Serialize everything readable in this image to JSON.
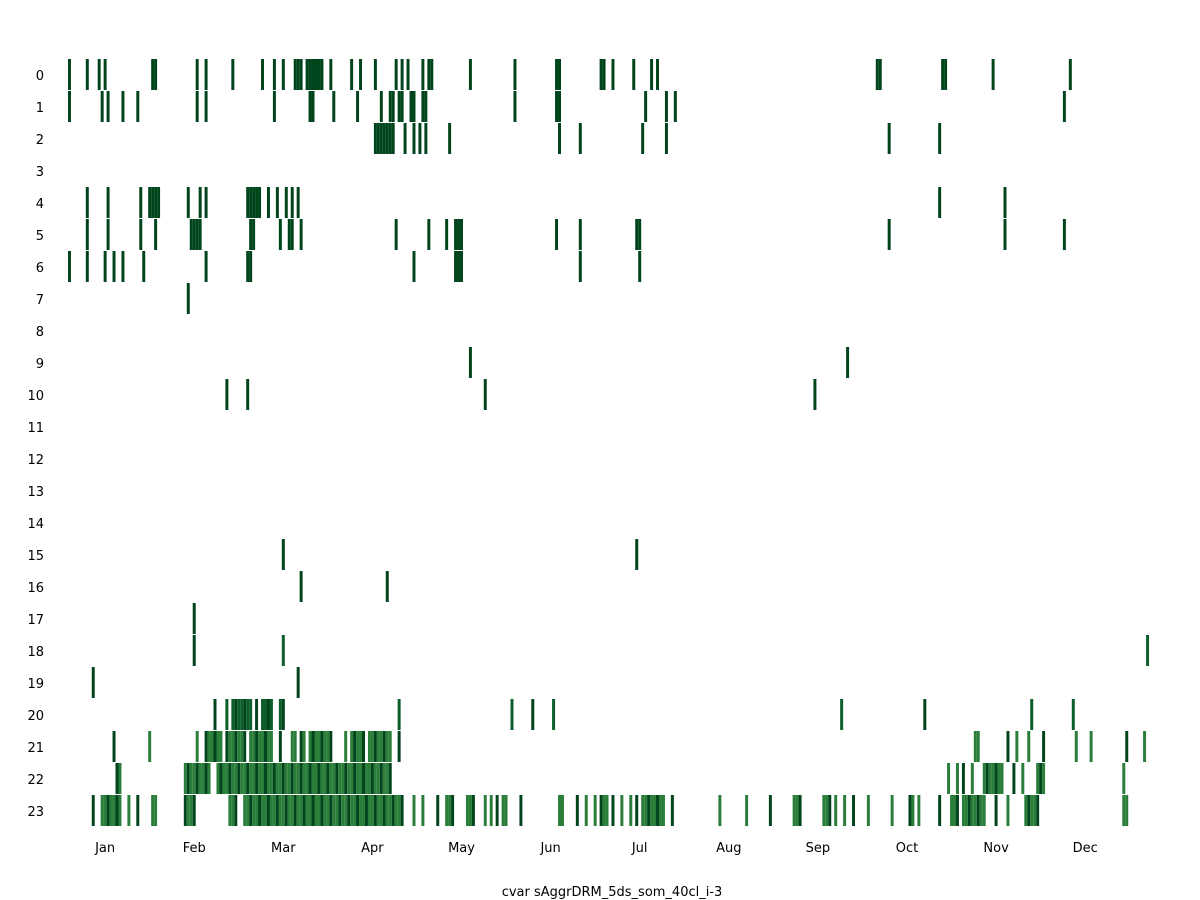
{
  "chart_data": {
    "type": "heatmap",
    "title": "",
    "xlabel": "cvar sAggrDRM_5ds_som_40cl_i-3",
    "ylabel": "",
    "x_range_days": [
      1,
      365
    ],
    "y_categories": [
      "0",
      "1",
      "2",
      "3",
      "4",
      "5",
      "6",
      "7",
      "8",
      "9",
      "10",
      "11",
      "12",
      "13",
      "14",
      "15",
      "16",
      "17",
      "18",
      "19",
      "20",
      "21",
      "22",
      "23"
    ],
    "x_ticks": [
      {
        "label": "Jan",
        "day": 13
      },
      {
        "label": "Feb",
        "day": 43
      },
      {
        "label": "Mar",
        "day": 73
      },
      {
        "label": "Apr",
        "day": 103
      },
      {
        "label": "May",
        "day": 133
      },
      {
        "label": "Jun",
        "day": 163
      },
      {
        "label": "Jul",
        "day": 193
      },
      {
        "label": "Aug",
        "day": 223
      },
      {
        "label": "Sep",
        "day": 253
      },
      {
        "label": "Oct",
        "day": 283
      },
      {
        "label": "Nov",
        "day": 313
      },
      {
        "label": "Dec",
        "day": 343
      }
    ],
    "colors": {
      "dark": "#00441b",
      "mid": "#0b5d29",
      "light": "#2a7e3a"
    },
    "grid": false,
    "legend": "none",
    "rows": [
      {
        "y": 0,
        "days": [
          1,
          7,
          11,
          13,
          29,
          30,
          44,
          47,
          56,
          66,
          70,
          73,
          77,
          78,
          79,
          81,
          82,
          83,
          84,
          85,
          86,
          89,
          96,
          99,
          104,
          111,
          113,
          115,
          120,
          122,
          123,
          136,
          151,
          165,
          166,
          180,
          181,
          184,
          191,
          197,
          199,
          273,
          274,
          295,
          296,
          312,
          338
        ],
        "shade": "dark"
      },
      {
        "y": 1,
        "days": [
          1,
          12,
          14,
          19,
          24,
          44,
          47,
          70,
          82,
          83,
          90,
          98,
          106,
          109,
          110,
          112,
          113,
          116,
          117,
          120,
          121,
          151,
          165,
          166,
          195,
          202,
          205,
          336
        ],
        "shade": "dark"
      },
      {
        "y": 2,
        "days": [
          104,
          105,
          106,
          107,
          108,
          109,
          110,
          114,
          117,
          119,
          121,
          129,
          166,
          173,
          194,
          202,
          277,
          294
        ],
        "shade": "dark"
      },
      {
        "y": 4,
        "days": [
          7,
          14,
          25,
          28,
          29,
          30,
          31,
          41,
          45,
          47,
          61,
          62,
          63,
          64,
          65,
          68,
          71,
          74,
          76,
          78,
          294,
          316
        ],
        "shade": "dark"
      },
      {
        "y": 5,
        "days": [
          7,
          14,
          25,
          30,
          42,
          43,
          44,
          45,
          62,
          63,
          72,
          75,
          76,
          79,
          111,
          122,
          128,
          131,
          132,
          133,
          165,
          173,
          192,
          193,
          277,
          316,
          336
        ],
        "shade": "dark"
      },
      {
        "y": 6,
        "days": [
          1,
          7,
          13,
          16,
          19,
          26,
          47,
          61,
          62,
          117,
          131,
          132,
          133,
          173,
          193
        ],
        "shade": "dark"
      },
      {
        "y": 7,
        "days": [
          41
        ],
        "shade": "dark"
      },
      {
        "y": 9,
        "days": [
          136,
          263
        ],
        "shade": "dark"
      },
      {
        "y": 10,
        "days": [
          54,
          61,
          141,
          252
        ],
        "shade": "dark"
      },
      {
        "y": 15,
        "days": [
          73,
          192
        ],
        "shade": "dark"
      },
      {
        "y": 16,
        "days": [
          79,
          108
        ],
        "shade": "dark"
      },
      {
        "y": 17,
        "days": [
          43
        ],
        "shade": "dark"
      },
      {
        "y": 18,
        "days": [
          43,
          73,
          364
        ],
        "shade": "mid"
      },
      {
        "y": 19,
        "days": [
          9,
          78
        ],
        "shade": "dark"
      },
      {
        "y": 20,
        "days": [
          50,
          54,
          56,
          57,
          58,
          59,
          60,
          61,
          62,
          64,
          66,
          67,
          68,
          69,
          72,
          73,
          112,
          150,
          157,
          164,
          261,
          289,
          325,
          339
        ],
        "shade": "mid"
      },
      {
        "y": 21,
        "days": [
          16,
          28,
          44,
          47,
          48,
          49,
          50,
          51,
          52,
          54,
          55,
          56,
          57,
          58,
          59,
          60,
          62,
          63,
          64,
          65,
          66,
          67,
          68,
          69,
          72,
          76,
          77,
          79,
          80,
          82,
          83,
          84,
          85,
          86,
          87,
          88,
          89,
          94,
          96,
          97,
          98,
          99,
          100,
          102,
          103,
          104,
          105,
          106,
          107,
          108,
          109,
          112,
          306,
          307,
          317,
          320,
          324,
          329,
          340,
          345,
          357,
          363
        ],
        "shade": "light"
      },
      {
        "y": 22,
        "days": [
          17,
          18,
          40,
          41,
          42,
          43,
          44,
          45,
          46,
          47,
          48,
          51,
          52,
          53,
          54,
          55,
          56,
          57,
          58,
          59,
          60,
          61,
          62,
          63,
          64,
          65,
          66,
          67,
          68,
          69,
          70,
          71,
          72,
          73,
          74,
          75,
          76,
          77,
          78,
          79,
          80,
          81,
          82,
          83,
          84,
          85,
          86,
          87,
          88,
          89,
          90,
          91,
          92,
          93,
          94,
          95,
          96,
          97,
          98,
          99,
          100,
          101,
          102,
          103,
          104,
          105,
          106,
          107,
          108,
          109,
          297,
          300,
          302,
          305,
          309,
          310,
          311,
          312,
          313,
          314,
          315,
          319,
          322,
          327,
          328,
          329,
          356
        ],
        "shade": "light"
      },
      {
        "y": 23,
        "days": [
          9,
          12,
          13,
          14,
          15,
          16,
          17,
          18,
          21,
          24,
          29,
          30,
          40,
          41,
          42,
          43,
          55,
          56,
          57,
          60,
          61,
          62,
          63,
          64,
          65,
          66,
          67,
          68,
          69,
          70,
          71,
          72,
          73,
          74,
          75,
          76,
          77,
          78,
          79,
          80,
          81,
          82,
          83,
          84,
          85,
          86,
          87,
          88,
          89,
          90,
          91,
          92,
          93,
          94,
          95,
          96,
          97,
          98,
          99,
          100,
          101,
          102,
          103,
          104,
          105,
          106,
          107,
          108,
          109,
          110,
          111,
          112,
          113,
          117,
          120,
          125,
          128,
          129,
          130,
          135,
          136,
          137,
          141,
          143,
          145,
          147,
          148,
          153,
          166,
          167,
          172,
          175,
          178,
          180,
          181,
          182,
          184,
          187,
          190,
          192,
          194,
          195,
          196,
          197,
          198,
          199,
          200,
          201,
          204,
          220,
          229,
          237,
          245,
          246,
          247,
          255,
          256,
          257,
          259,
          262,
          265,
          270,
          278,
          284,
          285,
          287,
          294,
          298,
          299,
          300,
          302,
          303,
          304,
          305,
          306,
          307,
          308,
          309,
          313,
          317,
          323,
          324,
          325,
          326,
          327,
          356,
          357
        ],
        "shade": "light"
      }
    ]
  }
}
